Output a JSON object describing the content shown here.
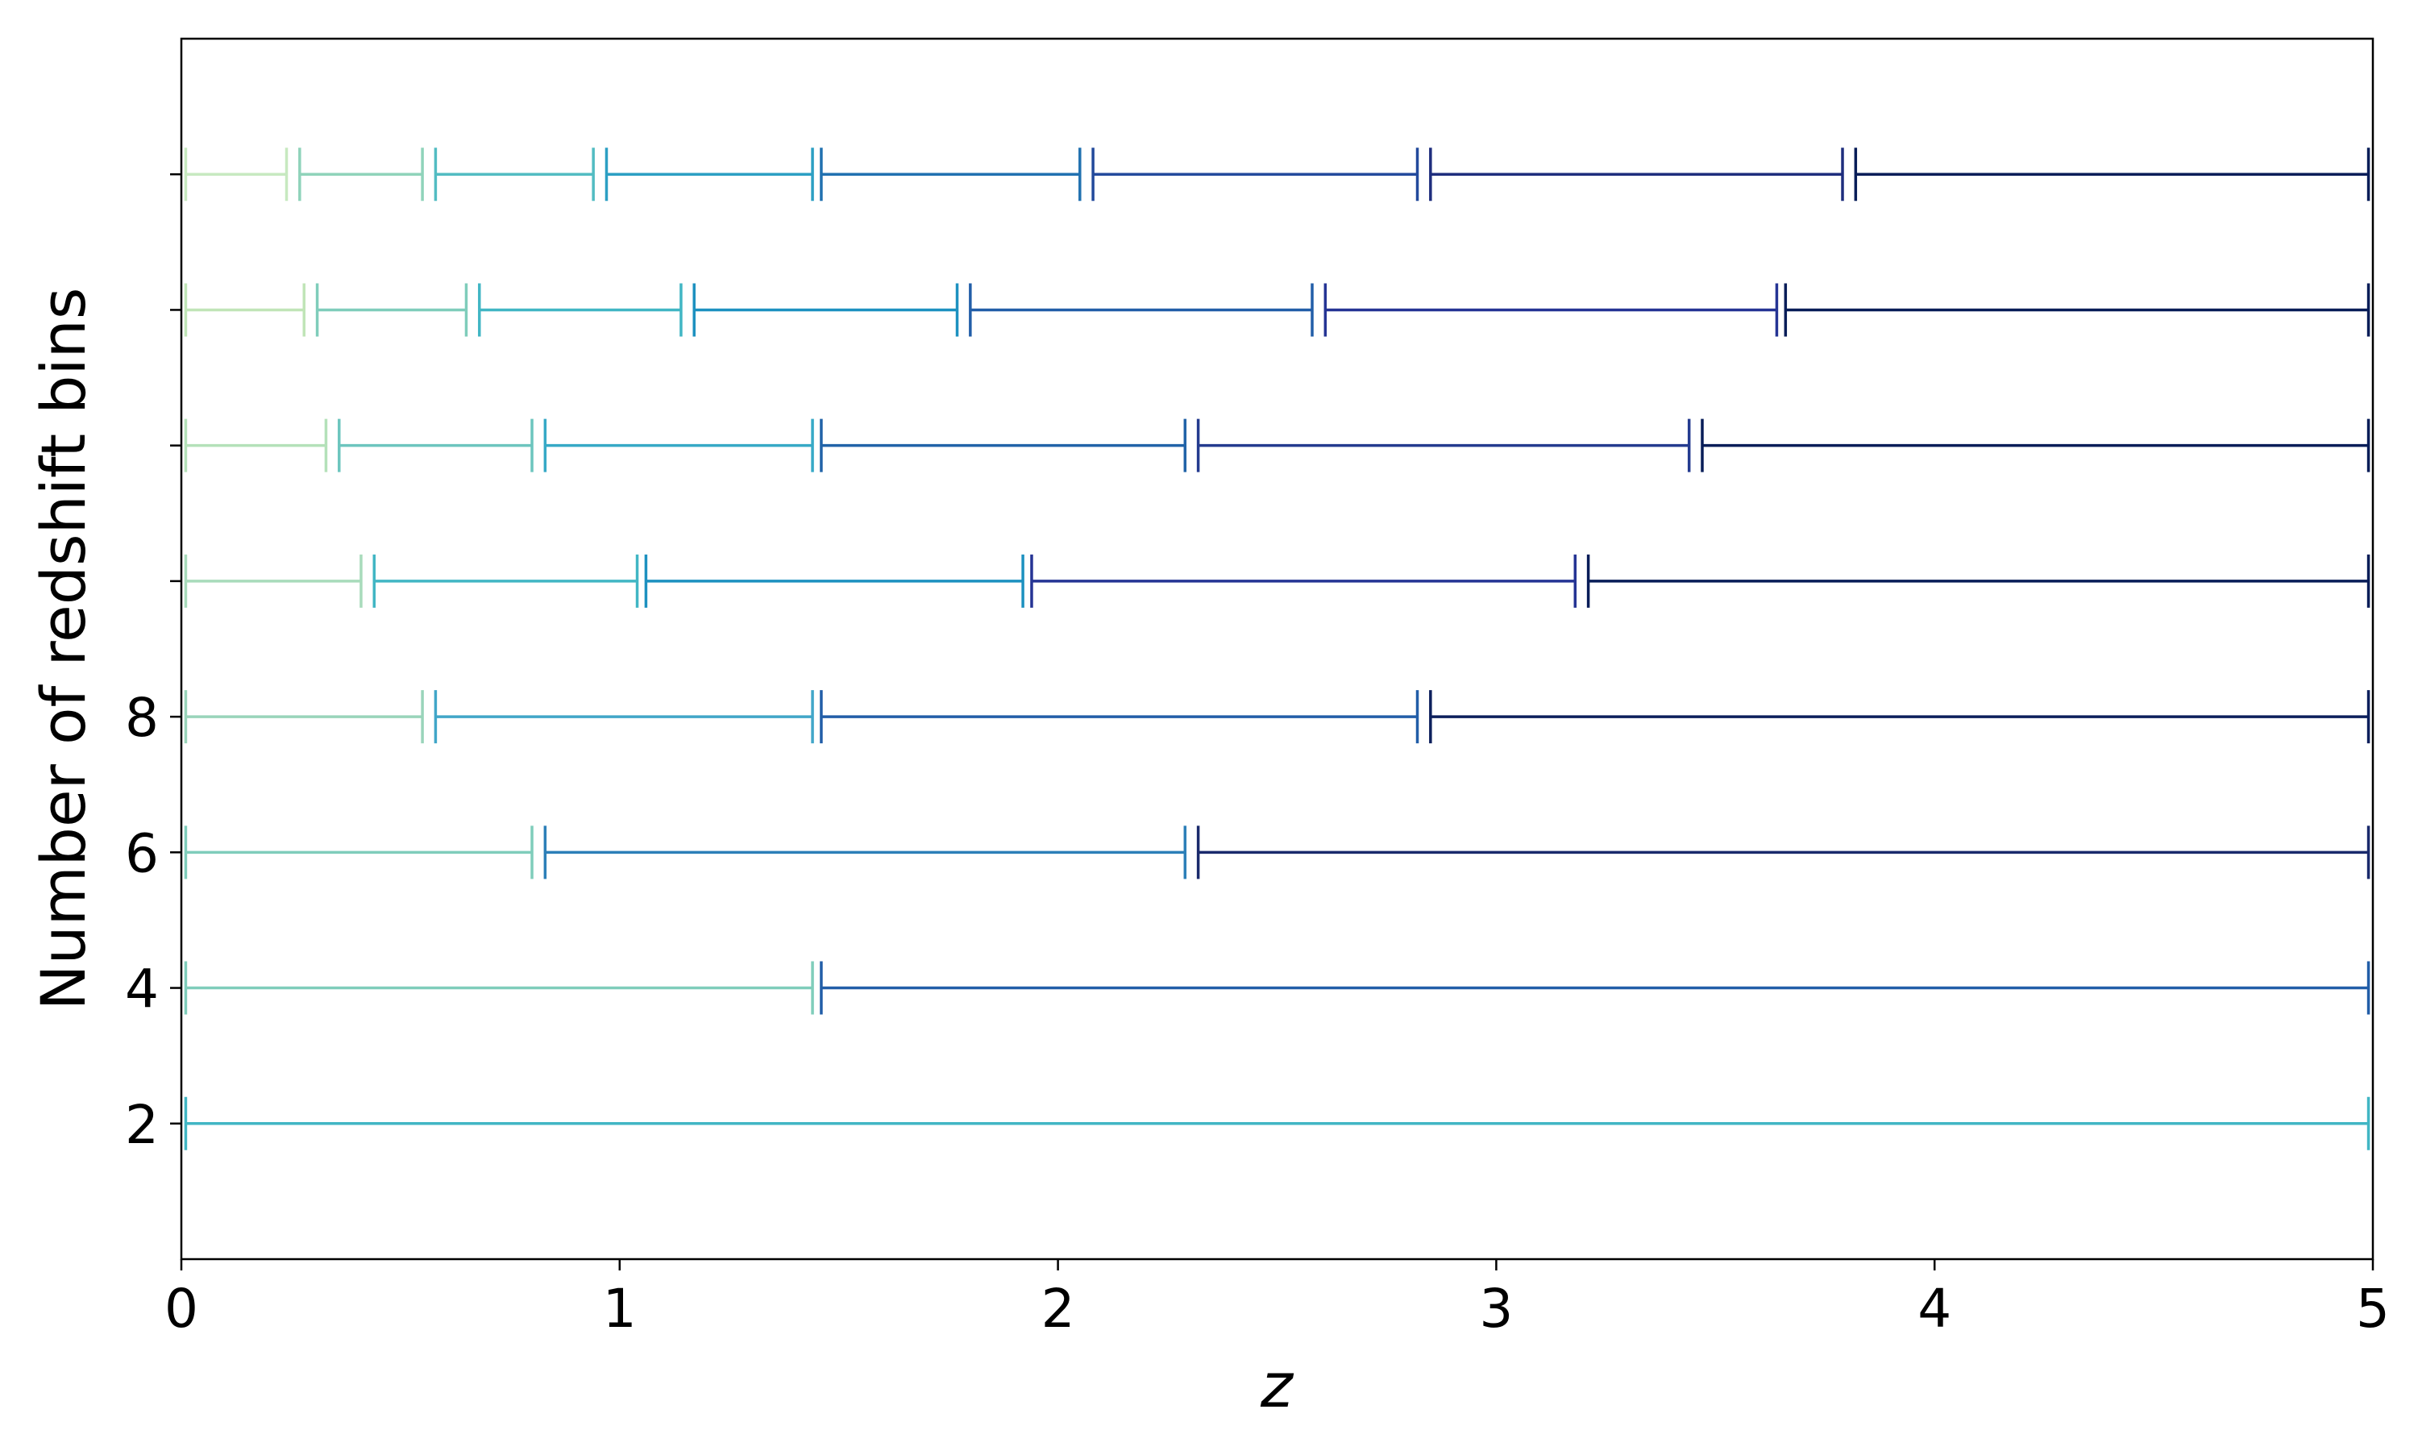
{
  "chart_data": {
    "type": "bin-edges",
    "xlabel": "z",
    "ylabel": "Number of redshift bins",
    "xlim": [
      0,
      5
    ],
    "xticks": [
      0,
      1,
      2,
      3,
      4,
      5
    ],
    "ylim": [
      0,
      18
    ],
    "yticks": [
      2,
      4,
      6,
      8
    ],
    "yticks_unlabeled": [
      10,
      12,
      14,
      16
    ],
    "rows": [
      {
        "y": 2,
        "bins": [
          [
            0.01,
            4.99
          ]
        ],
        "colors": [
          "#41b6c4"
        ]
      },
      {
        "y": 4,
        "bins": [
          [
            0.01,
            1.44
          ],
          [
            1.46,
            4.99
          ]
        ],
        "colors": [
          "#7fcdbb",
          "#225ea8"
        ]
      },
      {
        "y": 6,
        "bins": [
          [
            0.01,
            0.8
          ],
          [
            0.83,
            2.29
          ],
          [
            2.32,
            4.99
          ]
        ],
        "colors": [
          "#7fcdbb",
          "#2c7fb8",
          "#1a2a6c"
        ]
      },
      {
        "y": 8,
        "bins": [
          [
            0.01,
            0.55
          ],
          [
            0.58,
            1.44
          ],
          [
            1.46,
            2.82
          ],
          [
            2.85,
            4.99
          ]
        ],
        "colors": [
          "#99d4ba",
          "#41a6c8",
          "#225ea8",
          "#0c1f5c"
        ]
      },
      {
        "y": 10,
        "bins": [
          [
            0.01,
            0.41
          ],
          [
            0.44,
            1.04
          ],
          [
            1.06,
            1.92
          ],
          [
            1.94,
            3.18
          ],
          [
            3.21,
            4.99
          ]
        ],
        "colors": [
          "#a8dbbb",
          "#41b6c4",
          "#1d91c0",
          "#253494",
          "#081d58"
        ]
      },
      {
        "y": 12,
        "bins": [
          [
            0.01,
            0.33
          ],
          [
            0.36,
            0.8
          ],
          [
            0.83,
            1.44
          ],
          [
            1.46,
            2.29
          ],
          [
            2.32,
            3.44
          ],
          [
            3.47,
            4.99
          ]
        ],
        "colors": [
          "#b4e1b9",
          "#6cc5be",
          "#36a9c6",
          "#2163a8",
          "#243b8f",
          "#081d58"
        ]
      },
      {
        "y": 14,
        "bins": [
          [
            0.01,
            0.28
          ],
          [
            0.31,
            0.65
          ],
          [
            0.68,
            1.14
          ],
          [
            1.17,
            1.77
          ],
          [
            1.8,
            2.58
          ],
          [
            2.61,
            3.64
          ],
          [
            3.66,
            4.99
          ]
        ],
        "colors": [
          "#c0e5b7",
          "#7fcdbb",
          "#41b6c4",
          "#1d91c0",
          "#225ea8",
          "#253494",
          "#081d58"
        ]
      },
      {
        "y": 16,
        "bins": [
          [
            0.01,
            0.24
          ],
          [
            0.27,
            0.55
          ],
          [
            0.58,
            0.94
          ],
          [
            0.97,
            1.44
          ],
          [
            1.46,
            2.05
          ],
          [
            2.08,
            2.82
          ],
          [
            2.85,
            3.79
          ],
          [
            3.82,
            4.99
          ]
        ],
        "colors": [
          "#c7e9c0",
          "#8fd3ba",
          "#52bcc2",
          "#2c9fc3",
          "#2171b0",
          "#234a9c",
          "#1e2d7d",
          "#081d58"
        ]
      }
    ]
  }
}
